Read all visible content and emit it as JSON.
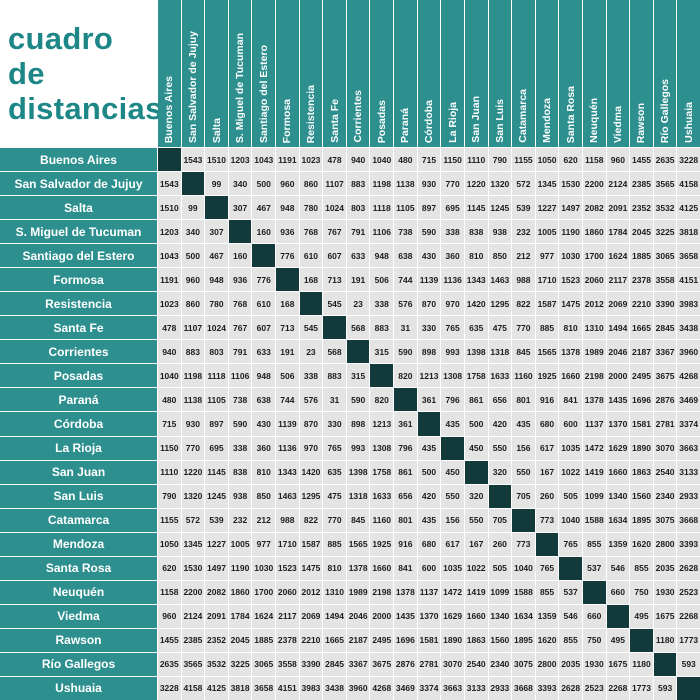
{
  "title": {
    "line1": "cuadro de",
    "line2": "distancias"
  },
  "colors": {
    "header_teal": "#2e8f8f",
    "title_teal": "#1d8787",
    "diagonal_dark": "#123a3a",
    "cell_bg": "#e4e4e4",
    "cell_text": "#1c1c1c"
  },
  "chart_data": {
    "type": "table",
    "title": "cuadro de distancias",
    "cities": [
      "Buenos Aires",
      "San Salvador de Jujuy",
      "Salta",
      "S. Miguel de Tucuman",
      "Santiago del Estero",
      "Formosa",
      "Resistencia",
      "Santa Fe",
      "Corrientes",
      "Posadas",
      "Paraná",
      "Córdoba",
      "La Rioja",
      "San Juan",
      "San Luis",
      "Catamarca",
      "Mendoza",
      "Santa Rosa",
      "Neuquén",
      "Viedma",
      "Rawson",
      "Río Gallegos",
      "Ushuaia"
    ],
    "distances": [
      [
        null,
        1543,
        1510,
        1203,
        1043,
        1191,
        1023,
        478,
        940,
        1040,
        480,
        715,
        1150,
        1110,
        790,
        1155,
        1050,
        620,
        1158,
        960,
        1455,
        2635,
        3228
      ],
      [
        1543,
        null,
        99,
        340,
        500,
        960,
        860,
        1107,
        883,
        1198,
        1138,
        930,
        770,
        1220,
        1320,
        572,
        1345,
        1530,
        2200,
        2124,
        2385,
        3565,
        4158
      ],
      [
        1510,
        99,
        null,
        307,
        467,
        948,
        780,
        1024,
        803,
        1118,
        1105,
        897,
        695,
        1145,
        1245,
        539,
        1227,
        1497,
        2082,
        2091,
        2352,
        3532,
        4125
      ],
      [
        1203,
        340,
        307,
        null,
        160,
        936,
        768,
        767,
        791,
        1106,
        738,
        590,
        338,
        838,
        938,
        232,
        1005,
        1190,
        1860,
        1784,
        2045,
        3225,
        3818
      ],
      [
        1043,
        500,
        467,
        160,
        null,
        776,
        610,
        607,
        633,
        948,
        638,
        430,
        360,
        810,
        850,
        212,
        977,
        1030,
        1700,
        1624,
        1885,
        3065,
        3658
      ],
      [
        1191,
        960,
        948,
        936,
        776,
        null,
        168,
        713,
        191,
        506,
        744,
        1139,
        1136,
        1343,
        1463,
        988,
        1710,
        1523,
        2060,
        2117,
        2378,
        3558,
        4151
      ],
      [
        1023,
        860,
        780,
        768,
        610,
        168,
        null,
        545,
        23,
        338,
        576,
        870,
        970,
        1420,
        1295,
        822,
        1587,
        1475,
        2012,
        2069,
        2210,
        3390,
        3983
      ],
      [
        478,
        1107,
        1024,
        767,
        607,
        713,
        545,
        null,
        568,
        883,
        31,
        330,
        765,
        635,
        475,
        770,
        885,
        810,
        1310,
        1494,
        1665,
        2845,
        3438
      ],
      [
        940,
        883,
        803,
        791,
        633,
        191,
        23,
        568,
        null,
        315,
        590,
        898,
        993,
        1398,
        1318,
        845,
        1565,
        1378,
        1989,
        2046,
        2187,
        3367,
        3960
      ],
      [
        1040,
        1198,
        1118,
        1106,
        948,
        506,
        338,
        883,
        315,
        null,
        820,
        1213,
        1308,
        1758,
        1633,
        1160,
        1925,
        1660,
        2198,
        2000,
        2495,
        3675,
        4268
      ],
      [
        480,
        1138,
        1105,
        738,
        638,
        744,
        576,
        31,
        590,
        820,
        null,
        361,
        796,
        861,
        656,
        801,
        916,
        841,
        1378,
        1435,
        1696,
        2876,
        3469
      ],
      [
        715,
        930,
        897,
        590,
        430,
        1139,
        870,
        330,
        898,
        1213,
        361,
        null,
        435,
        500,
        420,
        435,
        680,
        600,
        1137,
        1370,
        1581,
        2781,
        3374
      ],
      [
        1150,
        770,
        695,
        338,
        360,
        1136,
        970,
        765,
        993,
        1308,
        796,
        435,
        null,
        450,
        550,
        156,
        617,
        1035,
        1472,
        1629,
        1890,
        3070,
        3663
      ],
      [
        1110,
        1220,
        1145,
        838,
        810,
        1343,
        1420,
        635,
        1398,
        1758,
        861,
        500,
        450,
        null,
        320,
        550,
        167,
        1022,
        1419,
        1660,
        1863,
        2540,
        3133
      ],
      [
        790,
        1320,
        1245,
        938,
        850,
        1463,
        1295,
        475,
        1318,
        1633,
        656,
        420,
        550,
        320,
        null,
        705,
        260,
        505,
        1099,
        1340,
        1560,
        2340,
        2933
      ],
      [
        1155,
        572,
        539,
        232,
        212,
        988,
        822,
        770,
        845,
        1160,
        801,
        435,
        156,
        550,
        705,
        null,
        773,
        1040,
        1588,
        1634,
        1895,
        3075,
        3668
      ],
      [
        1050,
        1345,
        1227,
        1005,
        977,
        1710,
        1587,
        885,
        1565,
        1925,
        916,
        680,
        617,
        167,
        260,
        773,
        null,
        765,
        855,
        1359,
        1620,
        2800,
        3393
      ],
      [
        620,
        1530,
        1497,
        1190,
        1030,
        1523,
        1475,
        810,
        1378,
        1660,
        841,
        600,
        1035,
        1022,
        505,
        1040,
        765,
        null,
        537,
        546,
        855,
        2035,
        2628
      ],
      [
        1158,
        2200,
        2082,
        1860,
        1700,
        2060,
        2012,
        1310,
        1989,
        2198,
        1378,
        1137,
        1472,
        1419,
        1099,
        1588,
        855,
        537,
        null,
        660,
        750,
        1930,
        2523
      ],
      [
        960,
        2124,
        2091,
        1784,
        1624,
        2117,
        2069,
        1494,
        2046,
        2000,
        1435,
        1370,
        1629,
        1660,
        1340,
        1634,
        1359,
        546,
        660,
        null,
        495,
        1675,
        2268
      ],
      [
        1455,
        2385,
        2352,
        2045,
        1885,
        2378,
        2210,
        1665,
        2187,
        2495,
        1696,
        1581,
        1890,
        1863,
        1560,
        1895,
        1620,
        855,
        750,
        495,
        null,
        1180,
        1773
      ],
      [
        2635,
        3565,
        3532,
        3225,
        3065,
        3558,
        3390,
        2845,
        3367,
        3675,
        2876,
        2781,
        3070,
        2540,
        2340,
        3075,
        2800,
        2035,
        1930,
        1675,
        1180,
        null,
        593
      ],
      [
        3228,
        4158,
        4125,
        3818,
        3658,
        4151,
        3983,
        3438,
        3960,
        4268,
        3469,
        3374,
        3663,
        3133,
        2933,
        3668,
        3393,
        2628,
        2523,
        2268,
        1773,
        593,
        null
      ]
    ]
  }
}
